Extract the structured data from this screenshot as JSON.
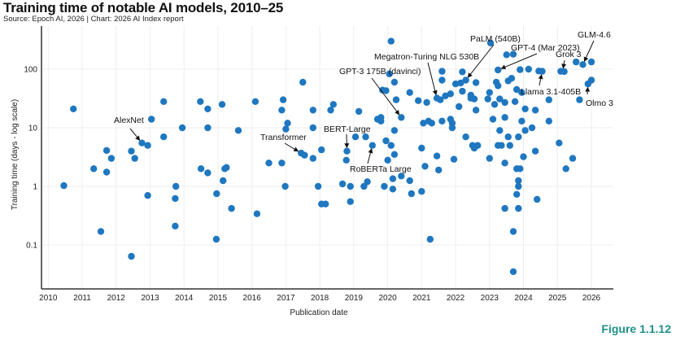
{
  "header": {
    "title": "Training time of notable AI models, 2010–25",
    "subtitle": "Source: Epoch AI, 2026 | Chart: 2026 AI Index report"
  },
  "figure_label": "Figure 1.1.12",
  "colors": {
    "point": "#1f77c0",
    "grid": "#eeeeee",
    "axis": "#333333",
    "figure_label": "#1e8f8a"
  },
  "chart_data": {
    "type": "scatter",
    "title": "Training time of notable AI models, 2010–25",
    "xlabel": "Publication date",
    "ylabel": "Training time (days - log scale)",
    "yscale": "log",
    "xlim": [
      2010,
      2026.65
    ],
    "ylim": [
      0.03,
      600
    ],
    "grid": true,
    "x_ticks": [
      2010,
      2011,
      2012,
      2013,
      2014,
      2015,
      2016,
      2017,
      2018,
      2019,
      2020,
      2021,
      2022,
      2023,
      2024,
      2025,
      2026
    ],
    "y_ticks": [
      {
        "value": 0.1,
        "label": "0.1"
      },
      {
        "value": 1,
        "label": "1"
      },
      {
        "value": 10,
        "label": "10"
      },
      {
        "value": 100,
        "label": "100"
      }
    ],
    "points": [
      [
        2010.46,
        1.03
      ],
      [
        2010.74,
        21
      ],
      [
        2011.34,
        2.0
      ],
      [
        2011.55,
        0.17
      ],
      [
        2011.72,
        4.1
      ],
      [
        2011.72,
        1.75
      ],
      [
        2011.86,
        3.0
      ],
      [
        2012.45,
        4.0
      ],
      [
        2012.45,
        0.064
      ],
      [
        2012.55,
        3.0
      ],
      [
        2012.76,
        5.5
      ],
      [
        2012.93,
        5.0
      ],
      [
        2012.93,
        0.7
      ],
      [
        2013.04,
        14
      ],
      [
        2013.4,
        28
      ],
      [
        2013.4,
        7
      ],
      [
        2013.76,
        1.0
      ],
      [
        2013.74,
        0.62
      ],
      [
        2013.74,
        0.21
      ],
      [
        2013.95,
        10
      ],
      [
        2014.48,
        28
      ],
      [
        2014.5,
        2.0
      ],
      [
        2014.7,
        21
      ],
      [
        2014.7,
        10
      ],
      [
        2014.7,
        1.7
      ],
      [
        2014.95,
        0.125
      ],
      [
        2014.96,
        0.75
      ],
      [
        2015.12,
        25
      ],
      [
        2015.15,
        1.25
      ],
      [
        2015.2,
        2.0
      ],
      [
        2015.25,
        2.1
      ],
      [
        2015.4,
        0.42
      ],
      [
        2015.6,
        9
      ],
      [
        2016.1,
        28
      ],
      [
        2016.15,
        0.34
      ],
      [
        2016.5,
        2.5
      ],
      [
        2016.88,
        2.5
      ],
      [
        2016.98,
        1.0
      ],
      [
        2017.0,
        9.5
      ],
      [
        2017.05,
        12
      ],
      [
        2016.92,
        30
      ],
      [
        2016.88,
        20
      ],
      [
        2017.5,
        60
      ],
      [
        2017.45,
        3.7
      ],
      [
        2017.55,
        3.4
      ],
      [
        2017.8,
        20
      ],
      [
        2017.8,
        10
      ],
      [
        2017.8,
        3.0
      ],
      [
        2017.95,
        1.0
      ],
      [
        2018.05,
        4.2
      ],
      [
        2018.05,
        0.5
      ],
      [
        2018.17,
        0.5
      ],
      [
        2018.32,
        20
      ],
      [
        2018.4,
        25
      ],
      [
        2018.67,
        1.1
      ],
      [
        2018.78,
        2.8
      ],
      [
        2018.8,
        4.0
      ],
      [
        2018.9,
        1.0
      ],
      [
        2018.9,
        0.55
      ],
      [
        2019.05,
        7
      ],
      [
        2019.15,
        19
      ],
      [
        2019.3,
        1.0
      ],
      [
        2019.35,
        7
      ],
      [
        2019.4,
        1.2
      ],
      [
        2019.55,
        5.0
      ],
      [
        2019.7,
        14
      ],
      [
        2019.8,
        15
      ],
      [
        2019.8,
        13
      ],
      [
        2019.85,
        44
      ],
      [
        2019.95,
        43
      ],
      [
        2019.9,
        1.0
      ],
      [
        2019.95,
        6
      ],
      [
        2020.0,
        2.8
      ],
      [
        2020.05,
        83
      ],
      [
        2020.1,
        300
      ],
      [
        2020.1,
        5.0
      ],
      [
        2020.15,
        0.9
      ],
      [
        2020.15,
        1.35
      ],
      [
        2020.2,
        60
      ],
      [
        2020.2,
        9
      ],
      [
        2020.2,
        3.5
      ],
      [
        2020.25,
        30
      ],
      [
        2020.4,
        15
      ],
      [
        2020.4,
        1.5
      ],
      [
        2020.65,
        40
      ],
      [
        2020.65,
        1.25
      ],
      [
        2020.7,
        0.75
      ],
      [
        2020.9,
        29
      ],
      [
        2021.0,
        0.82
      ],
      [
        2021.0,
        4.5
      ],
      [
        2021.05,
        12
      ],
      [
        2021.1,
        2.2
      ],
      [
        2021.15,
        27
      ],
      [
        2021.2,
        13
      ],
      [
        2021.25,
        0.125
      ],
      [
        2021.3,
        12
      ],
      [
        2021.45,
        32
      ],
      [
        2021.45,
        3.3
      ],
      [
        2021.5,
        1.9
      ],
      [
        2021.55,
        30
      ],
      [
        2021.6,
        92
      ],
      [
        2021.6,
        65
      ],
      [
        2021.6,
        13
      ],
      [
        2021.7,
        35
      ],
      [
        2021.85,
        38
      ],
      [
        2021.85,
        14
      ],
      [
        2021.9,
        12
      ],
      [
        2021.9,
        10
      ],
      [
        2021.95,
        2.9
      ],
      [
        2022.0,
        56
      ],
      [
        2022.15,
        58
      ],
      [
        2022.2,
        90
      ],
      [
        2022.2,
        42
      ],
      [
        2022.1,
        23
      ],
      [
        2022.3,
        65
      ],
      [
        2022.3,
        7
      ],
      [
        2022.45,
        36
      ],
      [
        2022.45,
        32
      ],
      [
        2022.5,
        5
      ],
      [
        2022.55,
        31
      ],
      [
        2022.55,
        4.5
      ],
      [
        2022.6,
        59
      ],
      [
        2022.6,
        20
      ],
      [
        2022.65,
        5
      ],
      [
        2022.95,
        31
      ],
      [
        2023.0,
        40
      ],
      [
        2023.0,
        3.0
      ],
      [
        2023.03,
        280
      ],
      [
        2023.1,
        14
      ],
      [
        2023.15,
        25
      ],
      [
        2023.2,
        60
      ],
      [
        2023.25,
        97
      ],
      [
        2023.25,
        52
      ],
      [
        2023.25,
        5
      ],
      [
        2023.3,
        31
      ],
      [
        2023.3,
        9
      ],
      [
        2023.35,
        5
      ],
      [
        2023.45,
        27
      ],
      [
        2023.45,
        15
      ],
      [
        2023.55,
        63
      ],
      [
        2023.5,
        176
      ],
      [
        2023.6,
        5
      ],
      [
        2023.65,
        70
      ],
      [
        2023.7,
        180
      ],
      [
        2023.75,
        28
      ],
      [
        2023.8,
        45
      ],
      [
        2023.85,
        7
      ],
      [
        2023.9,
        98
      ],
      [
        2023.95,
        40
      ],
      [
        2023.95,
        13
      ],
      [
        2023.8,
        2.0
      ],
      [
        2023.9,
        2.0
      ],
      [
        2023.85,
        1.25
      ],
      [
        2023.85,
        1.0
      ],
      [
        2023.8,
        0.73
      ],
      [
        2023.85,
        0.42
      ],
      [
        2023.7,
        0.17
      ],
      [
        2023.7,
        0.035
      ],
      [
        2023.45,
        0.42
      ],
      [
        2023.55,
        7
      ],
      [
        2024.15,
        100
      ],
      [
        2024.05,
        21
      ],
      [
        2024.05,
        9
      ],
      [
        2024.35,
        20
      ],
      [
        2024.35,
        4
      ],
      [
        2024.45,
        93
      ],
      [
        2024.4,
        0.6
      ],
      [
        2024.55,
        92
      ],
      [
        2024.75,
        30
      ],
      [
        2024.75,
        13
      ],
      [
        2025.1,
        92
      ],
      [
        2025.2,
        91
      ],
      [
        2025.05,
        5.5
      ],
      [
        2025.25,
        2.0
      ],
      [
        2025.45,
        3.0
      ],
      [
        2025.55,
        133
      ],
      [
        2025.65,
        30
      ],
      [
        2025.75,
        120
      ],
      [
        2025.9,
        56
      ],
      [
        2026.0,
        65
      ],
      [
        2026.0,
        133
      ],
      [
        2024.25,
        10
      ],
      [
        2024.0,
        3.2
      ],
      [
        2023.45,
        2.5
      ]
    ],
    "annotations": [
      {
        "label": "AlexNet",
        "x": 2012.76,
        "y": 5.5
      },
      {
        "label": "Transformer",
        "x": 2017.45,
        "y": 3.7
      },
      {
        "label": "BERT-Large",
        "x": 2018.8,
        "y": 4.0
      },
      {
        "label": "RoBERTa Large",
        "x": 2019.55,
        "y": 5.0
      },
      {
        "label": "GPT-3 175B (davinci)",
        "x": 2020.4,
        "y": 15
      },
      {
        "label": "Megatron-Turing NLG 530B",
        "x": 2021.45,
        "y": 32
      },
      {
        "label": "PaLM (540B)",
        "x": 2022.3,
        "y": 65
      },
      {
        "label": "GPT-4 (Mar 2023)",
        "x": 2023.25,
        "y": 97
      },
      {
        "label": "Llama 3.1-405B",
        "x": 2024.55,
        "y": 92
      },
      {
        "label": "Grok 3",
        "x": 2025.15,
        "y": 91
      },
      {
        "label": "GLM-4.6",
        "x": 2025.75,
        "y": 120
      },
      {
        "label": "Olmo 3",
        "x": 2025.9,
        "y": 56
      }
    ]
  }
}
